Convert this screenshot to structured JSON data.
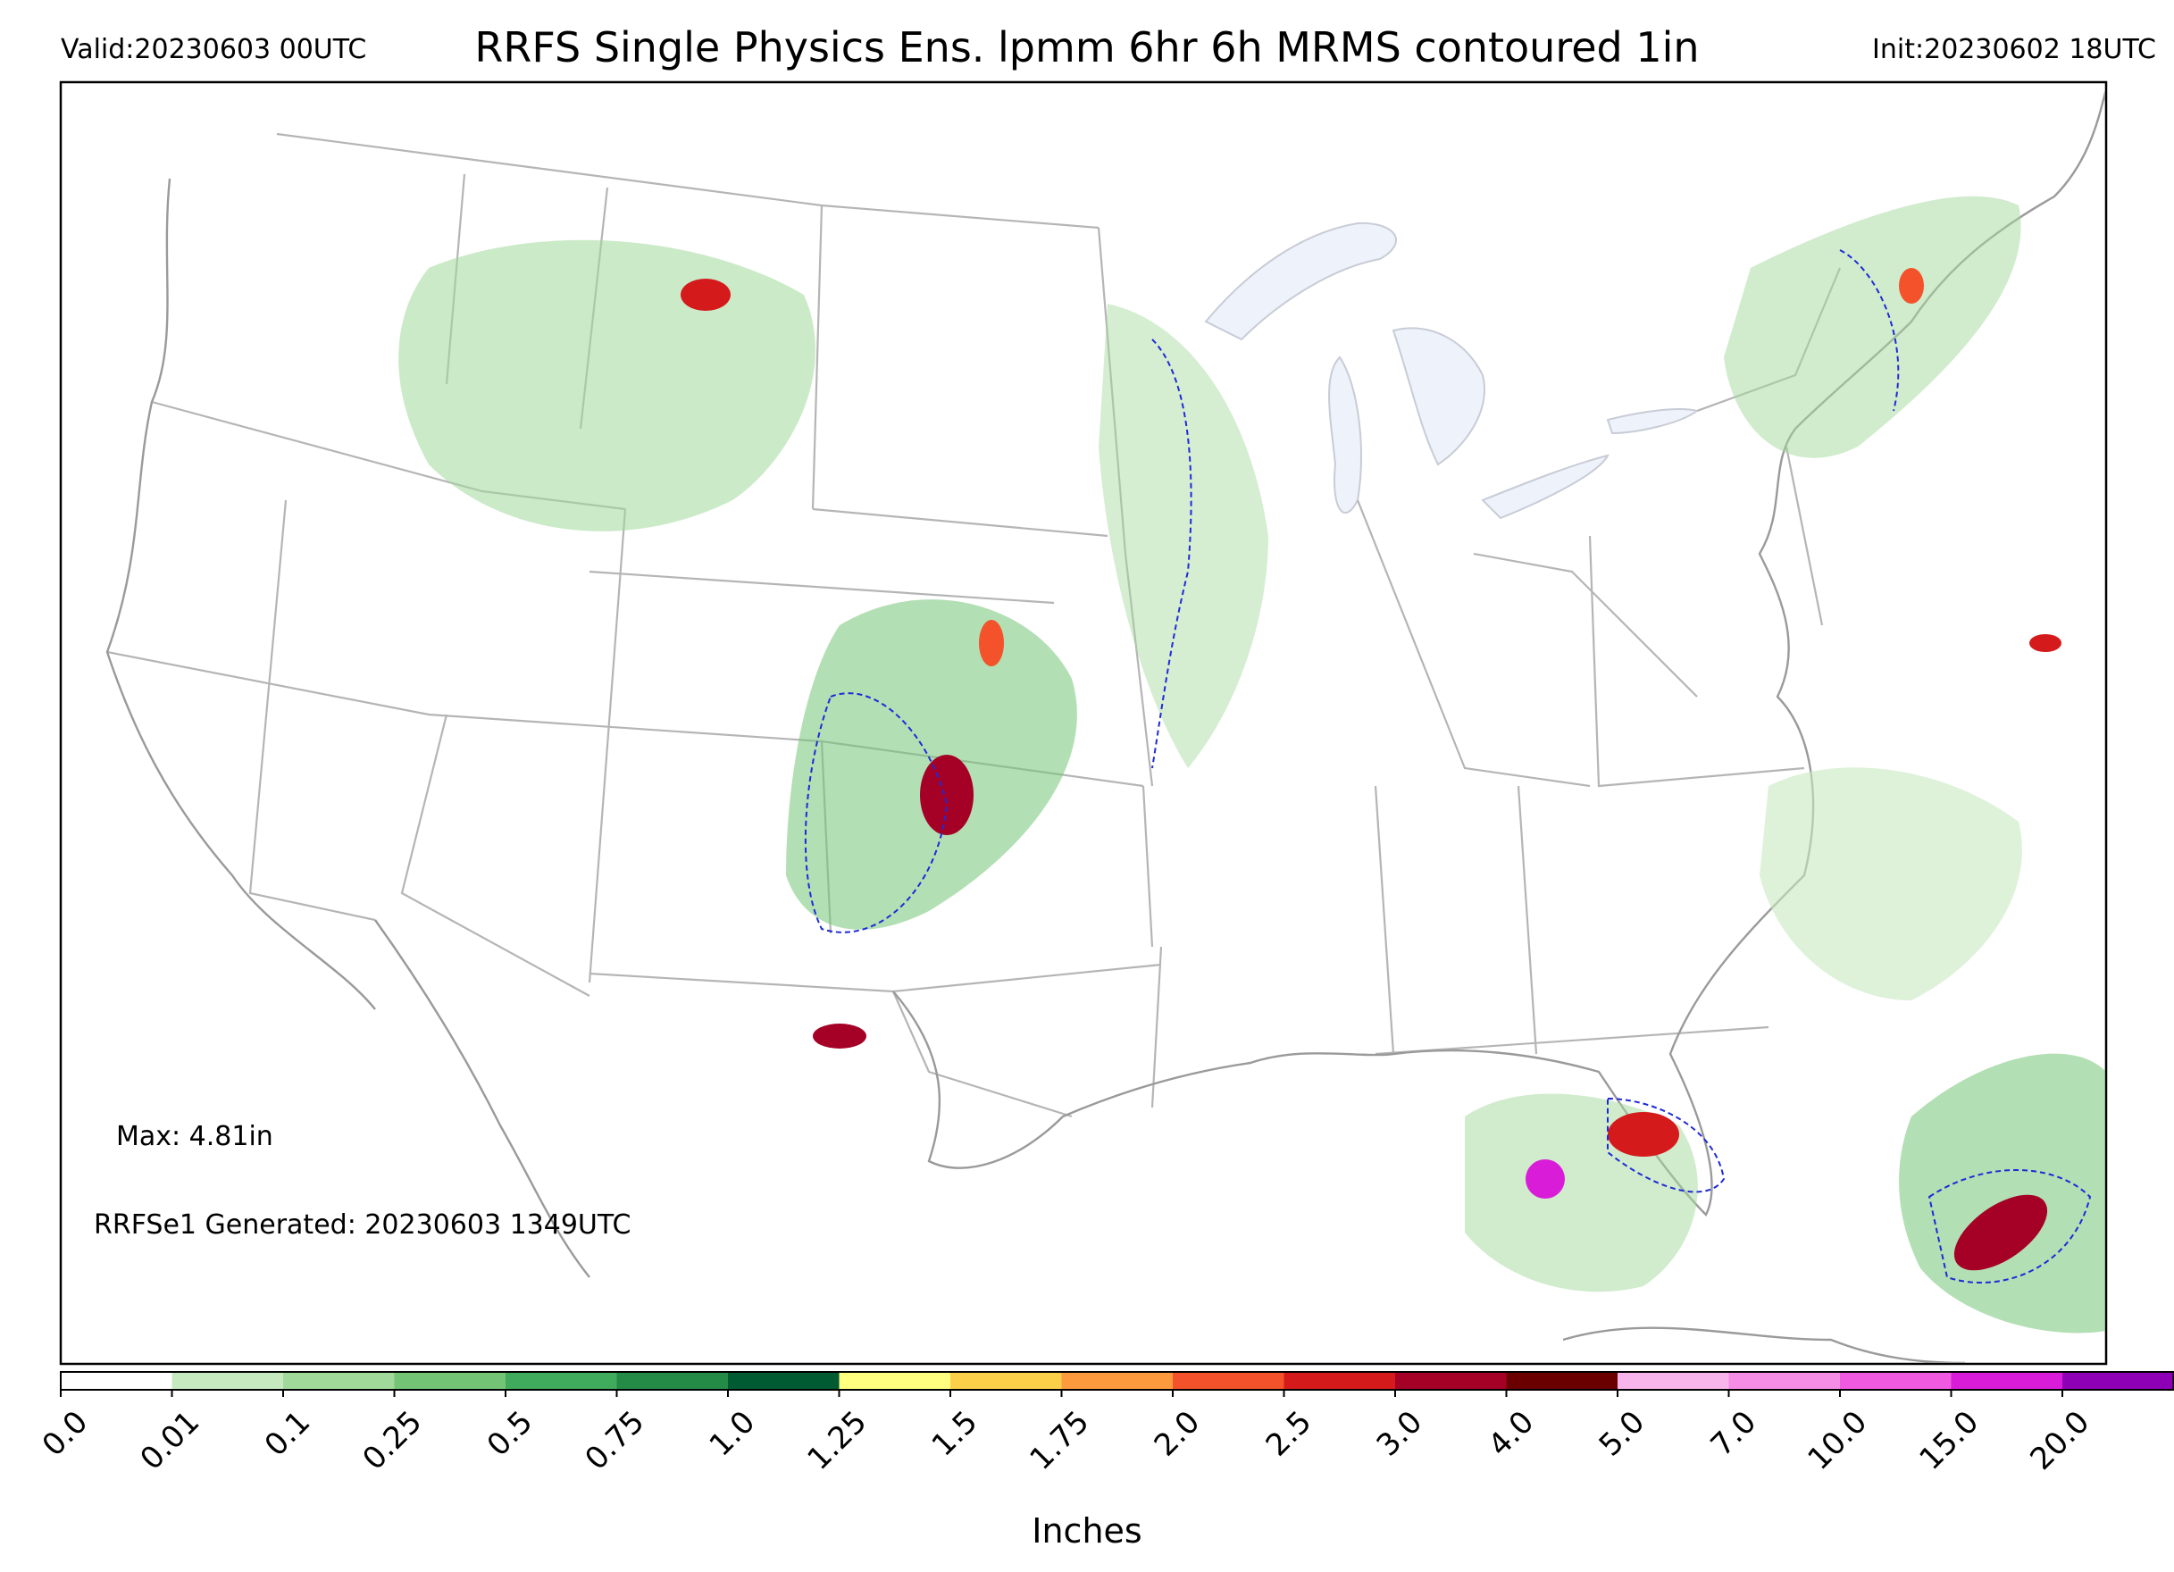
{
  "header": {
    "valid": "Valid:20230603 00UTC",
    "title": "RRFS Single Physics Ens. lpmm 6hr 6h MRMS contoured 1in",
    "init": "Init:20230602 18UTC"
  },
  "annotations": {
    "max": "Max: 4.81in",
    "generated": "RRFSe1 Generated: 20230603 1349UTC"
  },
  "colorbar": {
    "label": "Inches",
    "ticks": [
      "0.0",
      "0.01",
      "0.1",
      "0.25",
      "0.5",
      "0.75",
      "1.0",
      "1.25",
      "1.5",
      "1.75",
      "2.0",
      "2.5",
      "3.0",
      "4.0",
      "5.0",
      "7.0",
      "10.0",
      "15.0",
      "20.0"
    ],
    "colors": [
      "#ffffff",
      "#c7e9c0",
      "#a1d99b",
      "#74c476",
      "#41ab5d",
      "#238b45",
      "#005a32",
      "#ffff80",
      "#fdd049",
      "#fd9a3d",
      "#f3522a",
      "#d51a1c",
      "#a50025",
      "#6b0000",
      "#f8b5ec",
      "#f58ce6",
      "#f05ae0",
      "#d91cd8",
      "#8d00b5"
    ],
    "extend_color": "#4b0082"
  },
  "map": {
    "contour_color": "#1f2ad6",
    "boundary_color": "#b0b0b0",
    "lake_color": "#eef2fb"
  }
}
